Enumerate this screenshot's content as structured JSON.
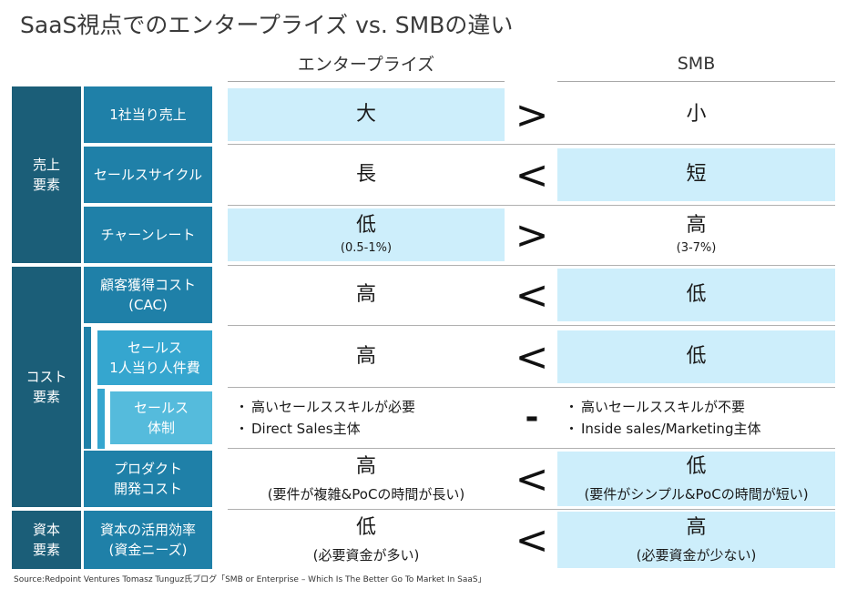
{
  "title": "SaaS視点でのエンタープライズ vs. SMBの違い",
  "columns": {
    "enterprise": "エンタープライズ",
    "smb": "SMB"
  },
  "groups": {
    "sales": "売上\n要素",
    "cost": "コスト\n要素",
    "capital": "資本\n要素"
  },
  "rows": [
    {
      "label": "1社当り売上",
      "ent_main": "大",
      "ent_sub": "",
      "op": ">",
      "smb_main": "小",
      "smb_sub": ""
    },
    {
      "label": "セールスサイクル",
      "ent_main": "長",
      "ent_sub": "",
      "op": "<",
      "smb_main": "短",
      "smb_sub": ""
    },
    {
      "label": "チャーンレート",
      "ent_main": "低",
      "ent_sub": "(0.5-1%)",
      "op": ">",
      "smb_main": "高",
      "smb_sub": "(3-7%)"
    },
    {
      "label": "顧客獲得コスト\n(CAC)",
      "ent_main": "高",
      "ent_sub": "",
      "op": "<",
      "smb_main": "低",
      "smb_sub": ""
    },
    {
      "label": "セールス\n1人当り人件費",
      "ent_main": "高",
      "ent_sub": "",
      "op": "<",
      "smb_main": "低",
      "smb_sub": ""
    },
    {
      "label": "セールス\n体制",
      "ent_bullets": [
        "高いセールススキルが必要",
        "Direct Sales主体"
      ],
      "op": "-",
      "smb_bullets": [
        "高いセールススキルが不要",
        "Inside sales/Marketing主体"
      ]
    },
    {
      "label": "プロダクト\n開発コスト",
      "ent_main": "高",
      "ent_sub": "(要件が複雑&PoCの時間が長い)",
      "op": "<",
      "smb_main": "低",
      "smb_sub": "(要件がシンプル&PoCの時間が短い)"
    },
    {
      "label": "資本の活用効率\n(資金ニーズ)",
      "ent_main": "低",
      "ent_sub": "(必要資金が多い)",
      "op": "<",
      "smb_main": "高",
      "smb_sub": "(必要資金が少ない)"
    }
  ],
  "bullet_mark": "・",
  "source": "Source:Redpoint Ventures Tomasz Tunguz氏ブログ「SMB or Enterprise – Which Is The Better Go To Market In SaaS」",
  "colors": {
    "dark": "#1b5e78",
    "mid": "#1f80a8",
    "light": "#35a6cf",
    "lighter": "#55bbdc",
    "highlight": "#cdeefb"
  }
}
